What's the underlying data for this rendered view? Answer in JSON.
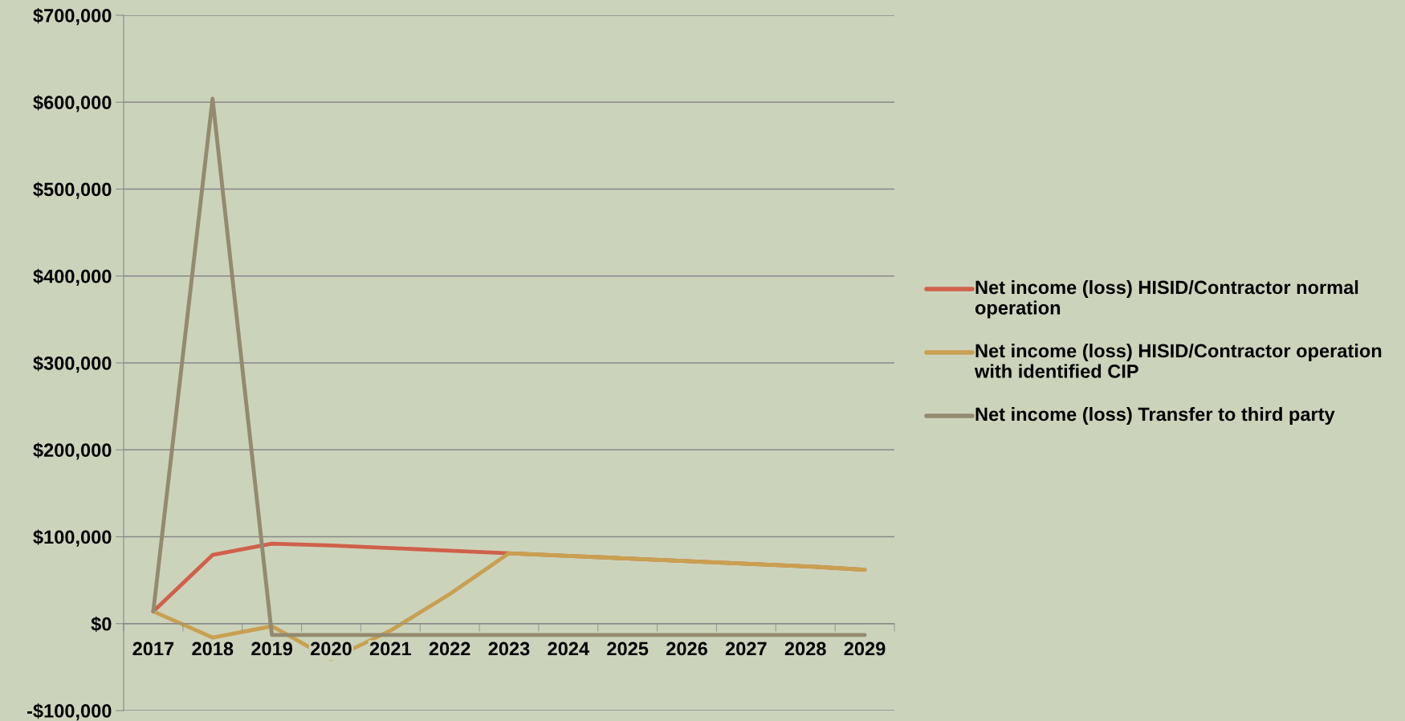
{
  "chart_data": {
    "type": "line",
    "categories": [
      "2017",
      "2018",
      "2019",
      "2020",
      "2021",
      "2022",
      "2023",
      "2024",
      "2025",
      "2026",
      "2027",
      "2028",
      "2029"
    ],
    "series": [
      {
        "name": "Net income (loss) HISID/Contractor normal operation",
        "color": "#d0604a",
        "values": [
          14000,
          79000,
          92000,
          90000,
          87000,
          84000,
          81000,
          78000,
          75000,
          72000,
          69000,
          66000,
          62000
        ]
      },
      {
        "name": "Net income (loss) HISID/Contractor operation with identified CIP",
        "color": "#c9a050",
        "values": [
          14000,
          -16000,
          -3000,
          -41000,
          -8000,
          34000,
          81000,
          78000,
          75000,
          72000,
          69000,
          66000,
          62000
        ]
      },
      {
        "name": "Net income (loss) Transfer to third party",
        "color": "#938a70",
        "values": [
          14000,
          604000,
          -13000,
          -13000,
          -13000,
          -13000,
          -13000,
          -13000,
          -13000,
          -13000,
          -13000,
          -13000,
          -13000
        ]
      }
    ],
    "ylim": [
      -100000,
      700000
    ],
    "yticks": [
      {
        "value": -100000,
        "label": "-$100,000"
      },
      {
        "value": 0,
        "label": "$0"
      },
      {
        "value": 100000,
        "label": "$100,000"
      },
      {
        "value": 200000,
        "label": "$200,000"
      },
      {
        "value": 300000,
        "label": "$300,000"
      },
      {
        "value": 400000,
        "label": "$400,000"
      },
      {
        "value": 500000,
        "label": "$500,000"
      },
      {
        "value": 600000,
        "label": "$600,000"
      },
      {
        "value": 700000,
        "label": "$700,000"
      }
    ],
    "grid": "y",
    "legend": "right",
    "marker": "none",
    "line_style": "solid"
  }
}
